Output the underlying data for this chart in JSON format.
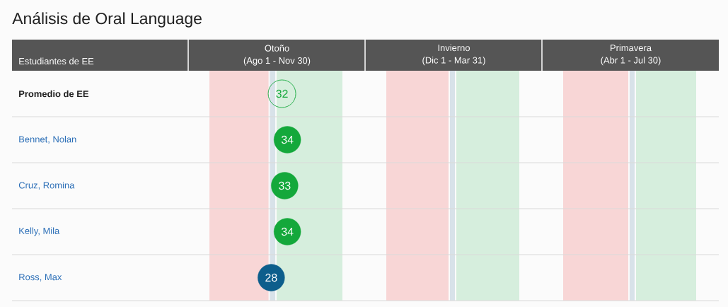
{
  "chart_data": [
    {
      "type": "other",
      "title": "Análisis de Oral Language"
    },
    {
      "type": "scatter",
      "title": "Otoño",
      "subtitle": "(Ago 1 - Nov 30)",
      "ylabel": "Estudiantes de EE",
      "orientation": "horizontal",
      "categories": [
        "Promedio de EE",
        "Bennet, Nolan",
        "Cruz, Romina",
        "Kelly, Mila",
        "Ross, Max"
      ],
      "values": [
        32,
        34,
        33,
        34,
        28
      ],
      "colors": [
        "#14a83b",
        "#14a83b",
        "#14a83b",
        "#14a83b",
        "#0d5e8c"
      ],
      "marker": "circle",
      "data_labels": true,
      "tick_labels": "y",
      "bands": [
        {
          "axis": "x",
          "from": 5,
          "to": 27,
          "color": "#f8d6d6"
        },
        {
          "axis": "x",
          "from": 27.5,
          "to": 29.5,
          "color": "#d8e2e9"
        },
        {
          "axis": "x",
          "from": 30,
          "to": 54.5,
          "color": "#d6eedd"
        }
      ]
    },
    {
      "type": "other",
      "title": "Invierno",
      "subtitle": "(Dic 1 - Mar 31)"
    },
    {
      "type": "other",
      "title": "Primavera",
      "subtitle": "(Abr 1 - Jul 30)"
    }
  ]
}
